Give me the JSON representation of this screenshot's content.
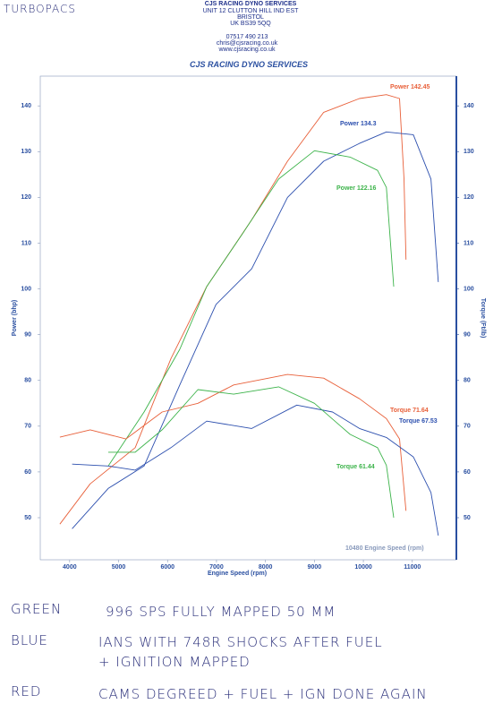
{
  "header": {
    "handwritten": "TURBOPACS",
    "company": "CJS RACING DYNO SERVICES",
    "address": [
      "UNIT 12 CLUTTON HILL IND EST",
      "BRISTOL",
      "UK BS39 5QQ"
    ],
    "contact": [
      "07517 490 213",
      "chris@cjsracing.co.uk",
      "www.cjsracing.co.uk"
    ]
  },
  "chart_data": {
    "type": "line",
    "title": "CJS RACING DYNO SERVICES",
    "x_label": "Engine Speed (rpm)",
    "y_label": "Power (bhp)",
    "y2_label": "Torque (Ft/lb)",
    "xlim": [
      3400,
      11900
    ],
    "xticks": [
      4000,
      5000,
      6000,
      7000,
      8000,
      9000,
      10000,
      11000
    ],
    "ylim": [
      40.8,
      146.5
    ],
    "yticks": [
      50,
      60,
      70,
      80,
      90,
      100,
      110,
      120,
      130,
      140
    ],
    "y2lim": [
      40.8,
      146.5
    ],
    "y2ticks": [
      50,
      60,
      70,
      80,
      90,
      100,
      110,
      120,
      130,
      140
    ],
    "grid": false,
    "series": [
      {
        "color": "#e8603a",
        "axis": "y",
        "x": [
          3800,
          4420,
          5340,
          6070,
          6800,
          7720,
          8450,
          9190,
          9920,
          10470,
          10740,
          10830,
          10870
        ],
        "y": [
          48.6,
          57.4,
          65.3,
          84.8,
          100.5,
          115.1,
          127.9,
          138.6,
          141.6,
          142.45,
          141.6,
          124,
          106.4
        ]
      },
      {
        "color": "#2c4fae",
        "axis": "y",
        "x": [
          4050,
          4790,
          5520,
          6250,
          6990,
          7720,
          8450,
          9190,
          9920,
          10470,
          11020,
          11380,
          11530
        ],
        "y": [
          47.6,
          56.4,
          61.3,
          79,
          96.6,
          104.4,
          120,
          127.9,
          131.8,
          134.3,
          133.7,
          124,
          101.5
        ]
      },
      {
        "color": "#3cb34a",
        "axis": "y",
        "x": [
          4790,
          5520,
          6250,
          6800,
          7540,
          8270,
          9000,
          9730,
          10290,
          10470,
          10620
        ],
        "y": [
          61.3,
          73.1,
          86.8,
          100.5,
          112.2,
          124,
          130.2,
          128.8,
          125.9,
          122.16,
          100.5
        ]
      },
      {
        "color": "#e8603a",
        "axis": "y2",
        "x": [
          3800,
          4420,
          5150,
          5890,
          6620,
          7350,
          8450,
          9190,
          9920,
          10470,
          10740,
          10870
        ],
        "y": [
          67.6,
          69.2,
          67.2,
          73.1,
          75,
          79,
          81.3,
          80.5,
          76,
          71.64,
          67.2,
          51.5
        ]
      },
      {
        "color": "#2c4fae",
        "axis": "y2",
        "x": [
          4050,
          4790,
          5340,
          6070,
          6800,
          7720,
          8640,
          9370,
          9920,
          10470,
          11020,
          11380,
          11530
        ],
        "y": [
          61.7,
          61.3,
          60.4,
          65.3,
          71.1,
          69.5,
          74.6,
          73.1,
          69.5,
          67.53,
          63.3,
          55.5,
          46.1
        ]
      },
      {
        "color": "#3cb34a",
        "axis": "y2",
        "x": [
          4790,
          5340,
          5890,
          6620,
          7350,
          8270,
          9000,
          9730,
          10290,
          10470,
          10620
        ],
        "y": [
          64.3,
          64.3,
          69.2,
          78,
          77,
          78.6,
          75,
          68.2,
          65.3,
          61.44,
          50
        ]
      }
    ],
    "annotations": [
      "Power 142.45",
      "Power 134.3",
      "Power 122.16",
      "Torque 71.64",
      "Torque 67.53",
      "Torque 61.44",
      "10480 Engine Speed (rpm)"
    ]
  },
  "notes": [
    [
      "GREEN",
      "996 SPS FULLY MAPPED 50 MM"
    ],
    [
      "BLUE",
      "IANS WITH 748R SHOCKS AFTER FUEL",
      "+ IGNITION MAPPED"
    ],
    [
      "RED",
      "CAMS DEGREED + FUEL + IGN DONE AGAIN"
    ]
  ]
}
